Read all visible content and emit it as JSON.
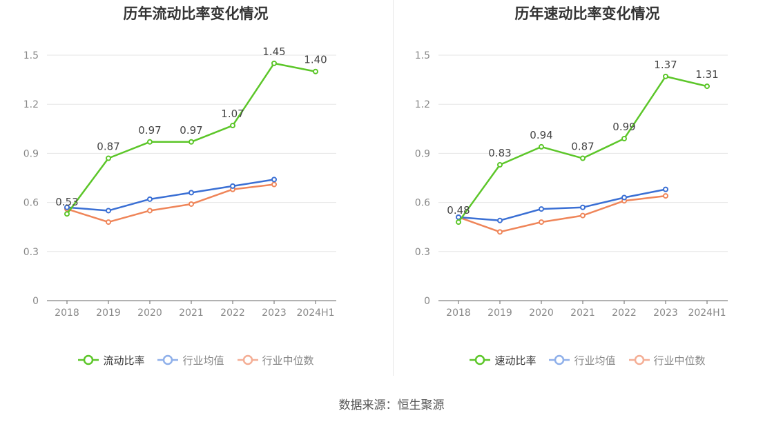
{
  "source_text": "数据来源：恒生聚源",
  "chart_data": [
    {
      "type": "line",
      "title": "历年流动比率变化情况",
      "categories": [
        "2018",
        "2019",
        "2020",
        "2021",
        "2022",
        "2023",
        "2024H1"
      ],
      "ylim": [
        0,
        1.5
      ],
      "yticks": [
        "0",
        "0.3",
        "0.6",
        "0.9",
        "1.2",
        "1.5"
      ],
      "grid": true,
      "legend_position": "bottom",
      "series": [
        {
          "name": "流动比率",
          "color": "#5cc629",
          "values": [
            0.53,
            0.87,
            0.97,
            0.97,
            1.07,
            1.45,
            1.4
          ],
          "labels": [
            "0.53",
            "0.87",
            "0.97",
            "0.97",
            "1.07",
            "1.45",
            "1.40"
          ]
        },
        {
          "name": "行业均值",
          "color": "#3a6fd4",
          "legend_color": "#8fb0ea",
          "values": [
            0.57,
            0.55,
            0.62,
            0.66,
            0.7,
            0.74,
            null
          ]
        },
        {
          "name": "行业中位数",
          "color": "#ef8559",
          "legend_color": "#f4ae95",
          "values": [
            0.56,
            0.48,
            0.55,
            0.59,
            0.68,
            0.71,
            null
          ]
        }
      ]
    },
    {
      "type": "line",
      "title": "历年速动比率变化情况",
      "categories": [
        "2018",
        "2019",
        "2020",
        "2021",
        "2022",
        "2023",
        "2024H1"
      ],
      "ylim": [
        0,
        1.5
      ],
      "yticks": [
        "0",
        "0.3",
        "0.6",
        "0.9",
        "1.2",
        "1.5"
      ],
      "grid": true,
      "legend_position": "bottom",
      "series": [
        {
          "name": "速动比率",
          "color": "#5cc629",
          "values": [
            0.48,
            0.83,
            0.94,
            0.87,
            0.99,
            1.37,
            1.31
          ],
          "labels": [
            "0.48",
            "0.83",
            "0.94",
            "0.87",
            "0.99",
            "1.37",
            "1.31"
          ]
        },
        {
          "name": "行业均值",
          "color": "#3a6fd4",
          "legend_color": "#8fb0ea",
          "values": [
            0.51,
            0.49,
            0.56,
            0.57,
            0.63,
            0.68,
            null
          ]
        },
        {
          "name": "行业中位数",
          "color": "#ef8559",
          "legend_color": "#f4ae95",
          "values": [
            0.51,
            0.42,
            0.48,
            0.52,
            0.61,
            0.64,
            null
          ]
        }
      ]
    }
  ]
}
